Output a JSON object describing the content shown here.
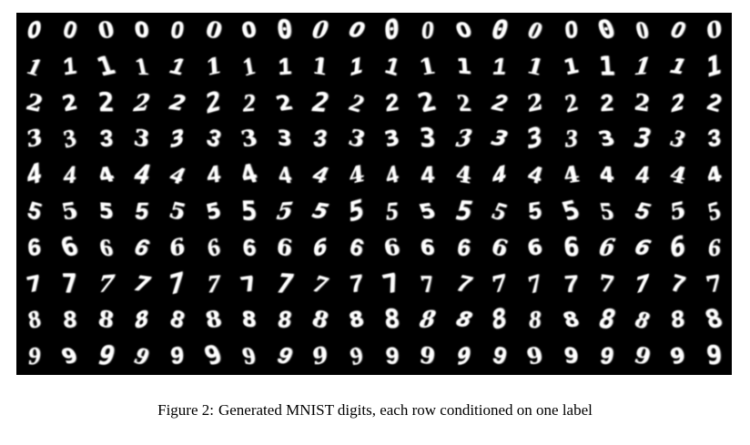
{
  "figure": {
    "caption_label": "Figure 2:",
    "caption_text": "Generated MNIST digits, each row conditioned on one label",
    "grid": {
      "rows": [
        {
          "label": "0",
          "count": 20
        },
        {
          "label": "1",
          "count": 20
        },
        {
          "label": "2",
          "count": 20
        },
        {
          "label": "3",
          "count": 20
        },
        {
          "label": "4",
          "count": 20
        },
        {
          "label": "5",
          "count": 20
        },
        {
          "label": "6",
          "count": 20
        },
        {
          "label": "7",
          "count": 20
        },
        {
          "label": "8",
          "count": 20
        },
        {
          "label": "9",
          "count": 20
        }
      ],
      "background": "#000000",
      "foreground": "#ffffff"
    }
  }
}
